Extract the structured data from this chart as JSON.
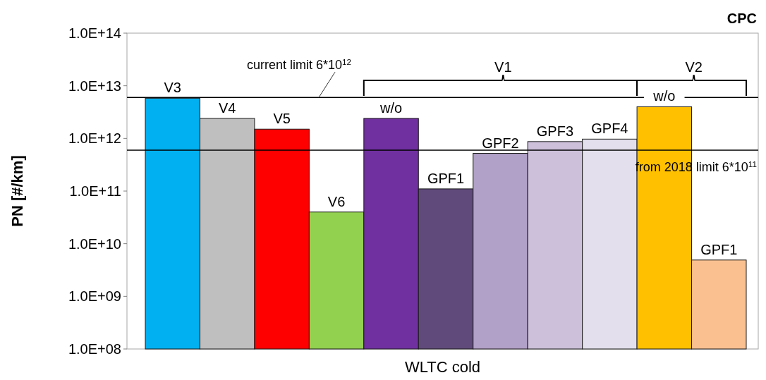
{
  "chart_data": {
    "type": "bar",
    "title": "CPC",
    "xlabel": "WLTC cold",
    "ylabel": "PN [#/km]",
    "categories": [
      "V3",
      "V4",
      "V5",
      "V6",
      "w/o",
      "GPF1",
      "GPF2",
      "GPF3",
      "GPF4",
      "w/o",
      "GPF1"
    ],
    "values": [
      5800000000000.0,
      2400000000000.0,
      1500000000000.0,
      40000000000.0,
      2400000000000.0,
      110000000000.0,
      520000000000.0,
      870000000000.0,
      970000000000.0,
      4000000000000.0,
      4900000000.0
    ],
    "colors": [
      "#00b0f0",
      "#bfbfbf",
      "#ff0000",
      "#92d050",
      "#7030a0",
      "#604a7b",
      "#b1a0c7",
      "#ccc0da",
      "#e4dfec",
      "#ffc000",
      "#fac090"
    ],
    "log": true,
    "ylim": [
      100000000.0,
      100000000000000.0
    ],
    "yticks": [
      {
        "value": 100000000.0,
        "label": "1.0E+08"
      },
      {
        "value": 1000000000.0,
        "label": "1.0E+09"
      },
      {
        "value": 10000000000.0,
        "label": "1.0E+10"
      },
      {
        "value": 100000000000.0,
        "label": "1.0E+11"
      },
      {
        "value": 1000000000000.0,
        "label": "1.0E+12"
      },
      {
        "value": 10000000000000.0,
        "label": "1.0E+13"
      },
      {
        "value": 100000000000000.0,
        "label": "1.0E+14"
      }
    ],
    "ref_lines": [
      {
        "axis": "y",
        "value": 6000000000000.0,
        "label": "current limit 6*10$^{12}$",
        "color": "#000000"
      },
      {
        "axis": "y",
        "value": 600000000000.0,
        "label": "from 2018 limit 6*10$^{11}$",
        "color": "#000000"
      }
    ],
    "annotations": [
      "V1",
      "V2"
    ],
    "grid": false
  }
}
